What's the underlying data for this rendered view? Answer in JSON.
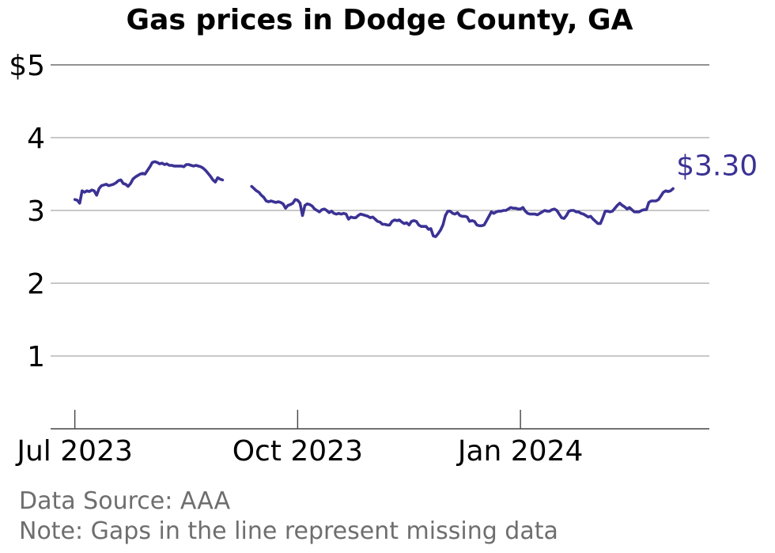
{
  "chart_data": {
    "type": "line",
    "title": "Gas prices in Dodge County, GA",
    "xlabel": "",
    "ylabel": "",
    "y_ticks": [
      {
        "value": 1,
        "label": "1"
      },
      {
        "value": 2,
        "label": "2"
      },
      {
        "value": 3,
        "label": "3"
      },
      {
        "value": 4,
        "label": "4"
      },
      {
        "value": 5,
        "label": "$5"
      }
    ],
    "ylim": [
      0,
      5
    ],
    "xlim": [
      "2023-06-21",
      "2024-03-19"
    ],
    "x_ticks": [
      {
        "value": "2023-07-01",
        "label": "Jul 2023"
      },
      {
        "value": "2023-10-01",
        "label": "Oct 2023"
      },
      {
        "value": "2024-01-01",
        "label": "Jan 2024"
      }
    ],
    "grid": true,
    "line_color": "#3b3294",
    "end_label": "$3.30",
    "series": [
      {
        "segments": [
          [
            [
              "2023-07-01",
              3.15
            ],
            [
              "2023-07-02",
              3.14
            ],
            [
              "2023-07-03",
              3.1
            ],
            [
              "2023-07-04",
              3.27
            ],
            [
              "2023-07-05",
              3.25
            ],
            [
              "2023-07-06",
              3.27
            ],
            [
              "2023-07-07",
              3.26
            ],
            [
              "2023-07-08",
              3.28
            ],
            [
              "2023-07-09",
              3.27
            ],
            [
              "2023-07-10",
              3.21
            ],
            [
              "2023-07-11",
              3.3
            ],
            [
              "2023-07-12",
              3.34
            ],
            [
              "2023-07-13",
              3.35
            ],
            [
              "2023-07-14",
              3.36
            ],
            [
              "2023-07-15",
              3.34
            ],
            [
              "2023-07-16",
              3.35
            ],
            [
              "2023-07-17",
              3.36
            ],
            [
              "2023-07-18",
              3.38
            ],
            [
              "2023-07-19",
              3.41
            ],
            [
              "2023-07-20",
              3.42
            ],
            [
              "2023-07-21",
              3.37
            ],
            [
              "2023-07-22",
              3.36
            ],
            [
              "2023-07-23",
              3.33
            ],
            [
              "2023-07-24",
              3.37
            ],
            [
              "2023-07-25",
              3.43
            ],
            [
              "2023-07-26",
              3.46
            ],
            [
              "2023-07-27",
              3.48
            ],
            [
              "2023-07-28",
              3.5
            ],
            [
              "2023-07-29",
              3.51
            ],
            [
              "2023-07-30",
              3.5
            ],
            [
              "2023-07-31",
              3.55
            ],
            [
              "2023-08-01",
              3.6
            ],
            [
              "2023-08-02",
              3.66
            ],
            [
              "2023-08-03",
              3.67
            ],
            [
              "2023-08-04",
              3.66
            ],
            [
              "2023-08-05",
              3.64
            ],
            [
              "2023-08-06",
              3.65
            ],
            [
              "2023-08-07",
              3.63
            ],
            [
              "2023-08-08",
              3.64
            ],
            [
              "2023-08-09",
              3.62
            ],
            [
              "2023-08-10",
              3.62
            ],
            [
              "2023-08-11",
              3.61
            ],
            [
              "2023-08-12",
              3.61
            ],
            [
              "2023-08-13",
              3.61
            ],
            [
              "2023-08-14",
              3.61
            ],
            [
              "2023-08-15",
              3.6
            ],
            [
              "2023-08-16",
              3.63
            ],
            [
              "2023-08-17",
              3.63
            ],
            [
              "2023-08-18",
              3.62
            ],
            [
              "2023-08-19",
              3.61
            ],
            [
              "2023-08-20",
              3.62
            ],
            [
              "2023-08-21",
              3.61
            ],
            [
              "2023-08-22",
              3.6
            ],
            [
              "2023-08-23",
              3.58
            ],
            [
              "2023-08-24",
              3.55
            ],
            [
              "2023-08-25",
              3.51
            ],
            [
              "2023-08-26",
              3.47
            ],
            [
              "2023-08-27",
              3.42
            ],
            [
              "2023-08-28",
              3.39
            ],
            [
              "2023-08-29",
              3.45
            ],
            [
              "2023-08-30",
              3.43
            ],
            [
              "2023-08-31",
              3.42
            ]
          ],
          [
            [
              "2023-09-12",
              3.33
            ],
            [
              "2023-09-13",
              3.3
            ],
            [
              "2023-09-14",
              3.27
            ],
            [
              "2023-09-15",
              3.25
            ],
            [
              "2023-09-16",
              3.21
            ],
            [
              "2023-09-17",
              3.18
            ],
            [
              "2023-09-18",
              3.13
            ],
            [
              "2023-09-19",
              3.12
            ],
            [
              "2023-09-20",
              3.13
            ],
            [
              "2023-09-21",
              3.12
            ],
            [
              "2023-09-22",
              3.11
            ],
            [
              "2023-09-23",
              3.12
            ],
            [
              "2023-09-24",
              3.11
            ],
            [
              "2023-09-25",
              3.09
            ],
            [
              "2023-09-26",
              3.03
            ],
            [
              "2023-09-27",
              3.07
            ],
            [
              "2023-09-28",
              3.08
            ],
            [
              "2023-09-29",
              3.1
            ],
            [
              "2023-09-30",
              3.15
            ],
            [
              "2023-10-01",
              3.14
            ],
            [
              "2023-10-02",
              3.1
            ],
            [
              "2023-10-03",
              2.93
            ],
            [
              "2023-10-04",
              3.07
            ],
            [
              "2023-10-05",
              3.09
            ],
            [
              "2023-10-06",
              3.08
            ],
            [
              "2023-10-07",
              3.06
            ],
            [
              "2023-10-08",
              3.02
            ],
            [
              "2023-10-09",
              3.0
            ],
            [
              "2023-10-10",
              2.98
            ],
            [
              "2023-10-11",
              3.01
            ],
            [
              "2023-10-12",
              3.02
            ],
            [
              "2023-10-13",
              3.0
            ],
            [
              "2023-10-14",
              2.97
            ],
            [
              "2023-10-15",
              2.99
            ],
            [
              "2023-10-16",
              2.96
            ],
            [
              "2023-10-17",
              2.95
            ],
            [
              "2023-10-18",
              2.96
            ],
            [
              "2023-10-19",
              2.95
            ],
            [
              "2023-10-20",
              2.96
            ],
            [
              "2023-10-21",
              2.95
            ],
            [
              "2023-10-22",
              2.88
            ],
            [
              "2023-10-23",
              2.91
            ],
            [
              "2023-10-24",
              2.9
            ],
            [
              "2023-10-25",
              2.9
            ],
            [
              "2023-10-26",
              2.93
            ],
            [
              "2023-10-27",
              2.95
            ],
            [
              "2023-10-28",
              2.94
            ],
            [
              "2023-10-29",
              2.93
            ],
            [
              "2023-10-30",
              2.92
            ],
            [
              "2023-10-31",
              2.9
            ],
            [
              "2023-11-01",
              2.91
            ],
            [
              "2023-11-02",
              2.88
            ],
            [
              "2023-11-03",
              2.85
            ],
            [
              "2023-11-04",
              2.84
            ],
            [
              "2023-11-05",
              2.81
            ],
            [
              "2023-11-06",
              2.81
            ],
            [
              "2023-11-07",
              2.8
            ],
            [
              "2023-11-08",
              2.8
            ],
            [
              "2023-11-09",
              2.85
            ],
            [
              "2023-11-10",
              2.87
            ],
            [
              "2023-11-11",
              2.86
            ],
            [
              "2023-11-12",
              2.87
            ],
            [
              "2023-11-13",
              2.84
            ],
            [
              "2023-11-14",
              2.82
            ],
            [
              "2023-11-15",
              2.83
            ],
            [
              "2023-11-16",
              2.8
            ],
            [
              "2023-11-17",
              2.85
            ],
            [
              "2023-11-18",
              2.86
            ],
            [
              "2023-11-19",
              2.85
            ],
            [
              "2023-11-20",
              2.8
            ],
            [
              "2023-11-21",
              2.78
            ],
            [
              "2023-11-22",
              2.78
            ],
            [
              "2023-11-23",
              2.78
            ],
            [
              "2023-11-24",
              2.74
            ],
            [
              "2023-11-25",
              2.75
            ],
            [
              "2023-11-26",
              2.65
            ],
            [
              "2023-11-27",
              2.64
            ],
            [
              "2023-11-28",
              2.68
            ],
            [
              "2023-11-29",
              2.73
            ],
            [
              "2023-11-30",
              2.8
            ],
            [
              "2023-12-01",
              2.93
            ],
            [
              "2023-12-02",
              2.99
            ],
            [
              "2023-12-03",
              2.99
            ],
            [
              "2023-12-04",
              2.96
            ],
            [
              "2023-12-05",
              2.95
            ],
            [
              "2023-12-06",
              2.97
            ],
            [
              "2023-12-07",
              2.93
            ],
            [
              "2023-12-08",
              2.92
            ],
            [
              "2023-12-09",
              2.92
            ],
            [
              "2023-12-10",
              2.91
            ],
            [
              "2023-12-11",
              2.85
            ],
            [
              "2023-12-12",
              2.86
            ],
            [
              "2023-12-13",
              2.85
            ],
            [
              "2023-12-14",
              2.8
            ],
            [
              "2023-12-15",
              2.79
            ],
            [
              "2023-12-16",
              2.79
            ],
            [
              "2023-12-17",
              2.8
            ],
            [
              "2023-12-18",
              2.86
            ],
            [
              "2023-12-19",
              2.92
            ],
            [
              "2023-12-20",
              2.98
            ],
            [
              "2023-12-21",
              2.96
            ],
            [
              "2023-12-22",
              2.98
            ],
            [
              "2023-12-23",
              2.99
            ],
            [
              "2023-12-24",
              2.99
            ],
            [
              "2023-12-25",
              3.0
            ],
            [
              "2023-12-26",
              3.0
            ],
            [
              "2023-12-27",
              3.02
            ],
            [
              "2023-12-28",
              3.04
            ],
            [
              "2023-12-29",
              3.03
            ],
            [
              "2023-12-30",
              3.03
            ],
            [
              "2023-12-31",
              3.02
            ],
            [
              "2024-01-01",
              3.02
            ],
            [
              "2024-01-02",
              3.04
            ],
            [
              "2024-01-03",
              2.99
            ],
            [
              "2024-01-04",
              2.96
            ],
            [
              "2024-01-05",
              2.95
            ],
            [
              "2024-01-06",
              2.95
            ],
            [
              "2024-01-07",
              2.95
            ],
            [
              "2024-01-08",
              2.94
            ],
            [
              "2024-01-09",
              2.96
            ],
            [
              "2024-01-10",
              2.98
            ],
            [
              "2024-01-11",
              3.0
            ],
            [
              "2024-01-12",
              2.99
            ],
            [
              "2024-01-13",
              2.99
            ],
            [
              "2024-01-14",
              3.01
            ],
            [
              "2024-01-15",
              3.02
            ],
            [
              "2024-01-16",
              3.0
            ],
            [
              "2024-01-17",
              2.95
            ],
            [
              "2024-01-18",
              2.9
            ],
            [
              "2024-01-19",
              2.89
            ],
            [
              "2024-01-20",
              2.93
            ],
            [
              "2024-01-21",
              2.99
            ],
            [
              "2024-01-22",
              3.0
            ],
            [
              "2024-01-23",
              3.0
            ],
            [
              "2024-01-24",
              2.98
            ],
            [
              "2024-01-25",
              2.98
            ],
            [
              "2024-01-26",
              2.96
            ],
            [
              "2024-01-27",
              2.95
            ],
            [
              "2024-01-28",
              2.93
            ],
            [
              "2024-01-29",
              2.91
            ],
            [
              "2024-01-30",
              2.92
            ],
            [
              "2024-01-31",
              2.88
            ],
            [
              "2024-02-01",
              2.85
            ],
            [
              "2024-02-02",
              2.82
            ],
            [
              "2024-02-03",
              2.82
            ],
            [
              "2024-02-04",
              2.9
            ],
            [
              "2024-02-05",
              2.99
            ],
            [
              "2024-02-06",
              2.99
            ],
            [
              "2024-02-07",
              2.98
            ],
            [
              "2024-02-08",
              2.99
            ],
            [
              "2024-02-09",
              3.03
            ],
            [
              "2024-02-10",
              3.07
            ],
            [
              "2024-02-11",
              3.1
            ],
            [
              "2024-02-12",
              3.07
            ],
            [
              "2024-02-13",
              3.05
            ],
            [
              "2024-02-14",
              3.02
            ],
            [
              "2024-02-15",
              3.04
            ],
            [
              "2024-02-16",
              3.01
            ],
            [
              "2024-02-17",
              2.98
            ],
            [
              "2024-02-18",
              2.98
            ],
            [
              "2024-02-19",
              2.98
            ],
            [
              "2024-02-20",
              3.0
            ],
            [
              "2024-02-21",
              3.01
            ],
            [
              "2024-02-22",
              3.01
            ],
            [
              "2024-02-23",
              3.11
            ],
            [
              "2024-02-24",
              3.13
            ],
            [
              "2024-02-25",
              3.13
            ],
            [
              "2024-02-26",
              3.13
            ],
            [
              "2024-02-27",
              3.15
            ],
            [
              "2024-02-28",
              3.2
            ],
            [
              "2024-02-29",
              3.25
            ],
            [
              "2024-03-01",
              3.27
            ],
            [
              "2024-03-02",
              3.26
            ],
            [
              "2024-03-03",
              3.27
            ],
            [
              "2024-03-04",
              3.3
            ]
          ]
        ]
      }
    ]
  },
  "footnotes": {
    "source": "Data Source: AAA",
    "note": "Note: Gaps in the line represent missing data"
  }
}
